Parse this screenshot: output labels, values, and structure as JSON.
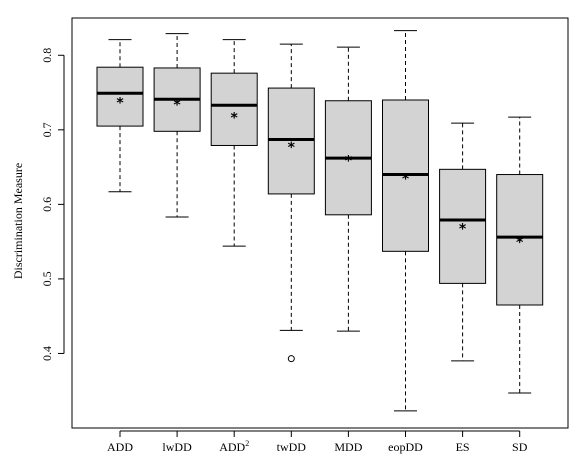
{
  "chart_data": {
    "type": "boxplot",
    "ylabel": "Discrimination Measure",
    "xlabel": "",
    "ylim": [
      0.3,
      0.85
    ],
    "y_ticks": [
      0.4,
      0.5,
      0.6,
      0.7,
      0.8
    ],
    "y_tick_labels": [
      "0.4",
      "0.5",
      "0.6",
      "0.7",
      "0.8"
    ],
    "grid": false,
    "mean_marker": "*",
    "box_fill": "#d3d3d3",
    "categories": [
      {
        "label": "ADD",
        "sup": "",
        "whisker_low": 0.617,
        "q1": 0.705,
        "median": 0.749,
        "q3": 0.784,
        "whisker_high": 0.821,
        "mean": 0.738,
        "outliers": []
      },
      {
        "label": "lwDD",
        "sup": "",
        "whisker_low": 0.583,
        "q1": 0.698,
        "median": 0.741,
        "q3": 0.783,
        "whisker_high": 0.829,
        "mean": 0.735,
        "outliers": []
      },
      {
        "label": "ADD",
        "sup": "2",
        "whisker_low": 0.544,
        "q1": 0.679,
        "median": 0.733,
        "q3": 0.776,
        "whisker_high": 0.821,
        "mean": 0.718,
        "outliers": []
      },
      {
        "label": "twDD",
        "sup": "",
        "whisker_low": 0.431,
        "q1": 0.614,
        "median": 0.687,
        "q3": 0.756,
        "whisker_high": 0.815,
        "mean": 0.678,
        "outliers": [
          0.393
        ]
      },
      {
        "label": "MDD",
        "sup": "",
        "whisker_low": 0.43,
        "q1": 0.586,
        "median": 0.662,
        "q3": 0.739,
        "whisker_high": 0.811,
        "mean": 0.66,
        "outliers": []
      },
      {
        "label": "eopDD",
        "sup": "",
        "whisker_low": 0.323,
        "q1": 0.537,
        "median": 0.64,
        "q3": 0.74,
        "whisker_high": 0.833,
        "mean": 0.636,
        "outliers": []
      },
      {
        "label": "ES",
        "sup": "",
        "whisker_low": 0.39,
        "q1": 0.494,
        "median": 0.579,
        "q3": 0.647,
        "whisker_high": 0.709,
        "mean": 0.569,
        "outliers": []
      },
      {
        "label": "SD",
        "sup": "",
        "whisker_low": 0.347,
        "q1": 0.465,
        "median": 0.556,
        "q3": 0.64,
        "whisker_high": 0.717,
        "mean": 0.551,
        "outliers": []
      }
    ]
  }
}
